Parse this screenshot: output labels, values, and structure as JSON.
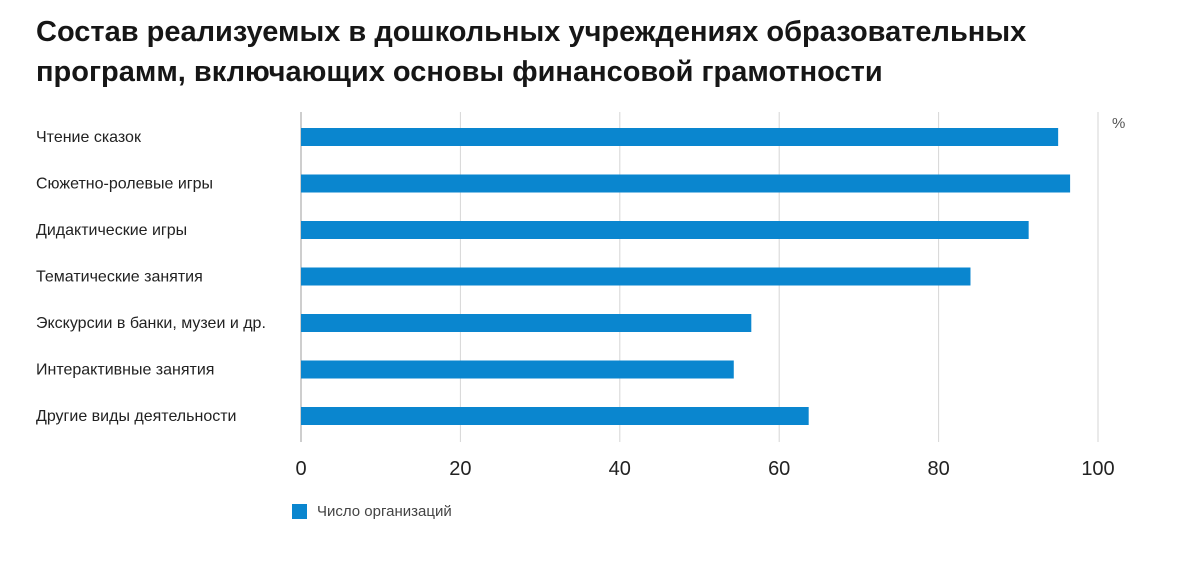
{
  "title": "Состав реализуемых в дошкольных учреждениях образовательных программ, включающих основы финансовой грамотности",
  "colors": {
    "bar": "#0a86cf",
    "grid": "#d6d6d6",
    "axis": "#9e9e9e"
  },
  "chart_data": {
    "type": "bar",
    "orientation": "horizontal",
    "title": "Состав реализуемых в дошкольных учреждениях образовательных программ, включающих основы финансовой грамотности",
    "unit": "%",
    "categories": [
      "Чтение сказок",
      "Сюжетно-ролевые игры",
      "Дидактические игры",
      "Тематические занятия",
      "Экскурсии в банки, музеи и др.",
      "Интерактивные занятия",
      "Другие виды деятельности"
    ],
    "series": [
      {
        "name": "Число организаций",
        "values": [
          95,
          96.5,
          91.3,
          84,
          56.5,
          54.3,
          63.7
        ]
      }
    ],
    "xlim": [
      0,
      100
    ],
    "xticks": [
      "0",
      "20",
      "40",
      "60",
      "80",
      "100"
    ],
    "xtick_values": [
      0,
      20,
      40,
      60,
      80,
      100
    ],
    "grid": true,
    "legend_position": "bottom-left"
  }
}
